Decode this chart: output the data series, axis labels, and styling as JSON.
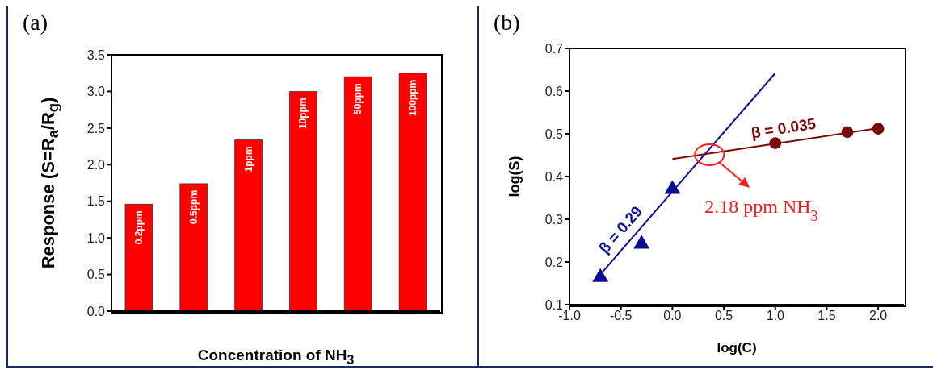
{
  "chart_data": [
    {
      "type": "bar",
      "title": "(a)",
      "xlabel": "Concentration of NH$_{3}$",
      "ylabel": "Response (S=R$_{a}$/R$_{g}$)",
      "categories": [
        "0.2ppm",
        "0.5ppm",
        "1ppm",
        "10ppm",
        "50ppm",
        "100ppm"
      ],
      "values": [
        1.46,
        1.74,
        2.34,
        3.0,
        3.2,
        3.25
      ],
      "color": "#ff0000",
      "ylim": [
        0,
        3.5
      ],
      "yticks": [
        {
          "value": 0,
          "label": "0.0"
        },
        0.5,
        {
          "value": 1,
          "label": "1.0"
        },
        1.5,
        {
          "value": 2,
          "label": "2.0"
        },
        2.5,
        {
          "value": 3,
          "label": "3.0"
        },
        3.5
      ],
      "tick_labels": "y"
    },
    {
      "type": "scatter",
      "title": "(b)",
      "xlabel": "log(C)",
      "ylabel": "log(S)",
      "series": [
        {
          "type": "scatter",
          "color": "#0c0c96",
          "marker": "triangle",
          "x": [
            -0.7,
            -0.3,
            0
          ],
          "values": [
            0.164,
            0.242,
            0.37
          ]
        },
        {
          "type": "scatter",
          "color": "#7a0a0a",
          "marker": "circle",
          "x": [
            1,
            1.7,
            2
          ],
          "values": [
            0.478,
            0.504,
            0.512
          ]
        },
        {
          "type": "line",
          "color": "#0c0c96",
          "marker": "none",
          "x": [
            -0.75,
            1.0
          ],
          "values": [
            0.157,
            0.642
          ]
        },
        {
          "type": "line",
          "color": "#7a0a0a",
          "marker": "none",
          "x": [
            0,
            2
          ],
          "values": [
            0.441,
            0.513
          ]
        }
      ],
      "xlim": [
        -1,
        2.25
      ],
      "xticks": [
        {
          "value": -1,
          "label": "-1.0"
        },
        -0.5,
        {
          "value": 0,
          "label": "0.0"
        },
        0.5,
        {
          "value": 1,
          "label": "1.0"
        },
        1.5,
        {
          "value": 2,
          "label": "2.0"
        }
      ],
      "ylim": [
        0.1,
        0.7
      ],
      "yticks": [
        0.1,
        0.2,
        0.3,
        0.4,
        0.5,
        0.6,
        0.7
      ],
      "annotations": [
        "β = 0.29",
        "β = 0.035",
        {
          "text": "2.18 ppm NH$_{3}$",
          "x": 0.36,
          "y": 0.451
        }
      ]
    }
  ]
}
